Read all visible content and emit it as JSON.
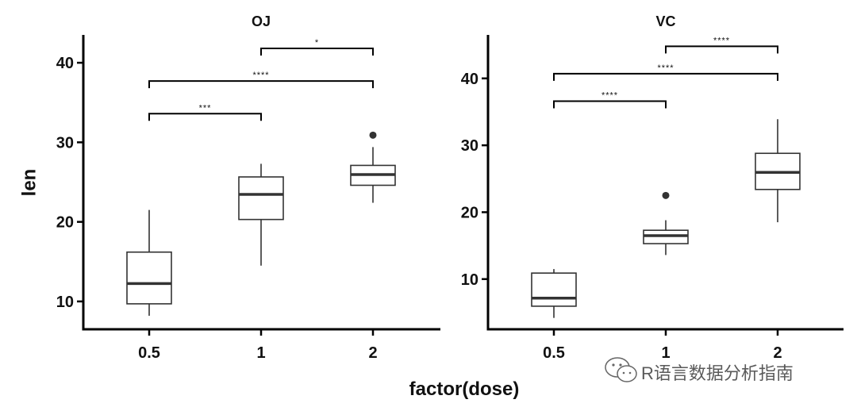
{
  "chart_data": {
    "type": "boxplot",
    "xlabel": "factor(dose)",
    "ylabel": "len",
    "categories": [
      "0.5",
      "1",
      "2"
    ],
    "panels": [
      {
        "title": "OJ",
        "ylim": [
          6.5,
          43.5
        ],
        "yticks": [
          10,
          20,
          30,
          40
        ],
        "boxes": [
          {
            "x": "0.5",
            "whisker_low": 8.2,
            "q1": 9.7,
            "median": 12.25,
            "q3": 16.2,
            "whisker_high": 21.5,
            "outliers": []
          },
          {
            "x": "1",
            "whisker_low": 14.5,
            "q1": 20.3,
            "median": 23.45,
            "q3": 25.65,
            "whisker_high": 27.3,
            "outliers": []
          },
          {
            "x": "2",
            "whisker_low": 22.4,
            "q1": 24.6,
            "median": 25.95,
            "q3": 27.1,
            "whisker_high": 29.4,
            "outliers": [
              30.9
            ]
          }
        ],
        "comparisons": [
          {
            "from": "0.5",
            "to": "1",
            "y": 33.6,
            "label": "***"
          },
          {
            "from": "0.5",
            "to": "2",
            "y": 37.7,
            "label": "****"
          },
          {
            "from": "1",
            "to": "2",
            "y": 41.8,
            "label": "*"
          }
        ]
      },
      {
        "title": "VC",
        "ylim": [
          2.5,
          46.5
        ],
        "yticks": [
          10,
          20,
          30,
          40
        ],
        "boxes": [
          {
            "x": "0.5",
            "whisker_low": 4.2,
            "q1": 5.95,
            "median": 7.15,
            "q3": 10.9,
            "whisker_high": 11.5,
            "outliers": []
          },
          {
            "x": "1",
            "whisker_low": 13.6,
            "q1": 15.3,
            "median": 16.5,
            "q3": 17.3,
            "whisker_high": 18.8,
            "outliers": [
              22.5
            ]
          },
          {
            "x": "2",
            "whisker_low": 18.5,
            "q1": 23.4,
            "median": 25.95,
            "q3": 28.8,
            "whisker_high": 33.9,
            "outliers": []
          }
        ],
        "comparisons": [
          {
            "from": "0.5",
            "to": "1",
            "y": 36.6,
            "label": "****"
          },
          {
            "from": "0.5",
            "to": "2",
            "y": 40.7,
            "label": "****"
          },
          {
            "from": "1",
            "to": "2",
            "y": 44.8,
            "label": "****"
          }
        ]
      }
    ]
  },
  "watermark": {
    "text": "R语言数据分析指南",
    "icon": "wechat-icon"
  }
}
